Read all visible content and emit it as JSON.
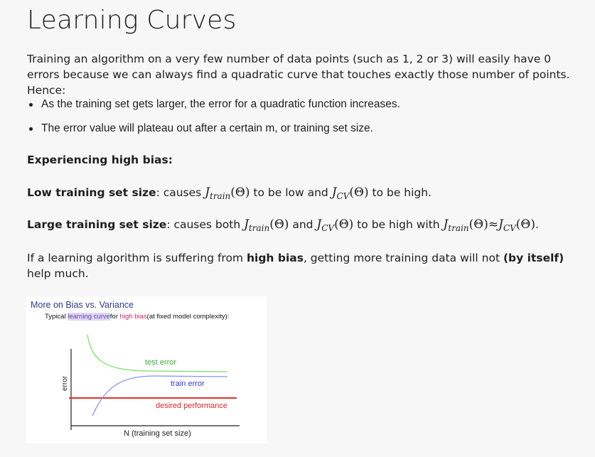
{
  "title": "Learning Curves",
  "intro": "Training an algorithm on a very few number of data points (such as 1, 2 or 3) will easily have 0 errors because we can always find a quadratic curve that touches exactly those number of points. Hence:",
  "bullets": [
    "As the training set gets larger, the error for a quadratic function increases.",
    "The error value will plateau out after a certain m, or training set size."
  ],
  "high_bias_heading": "Experiencing high bias:",
  "low_size": {
    "label": "Low training set size",
    "t1": ": causes ",
    "t2": " to be low and ",
    "t3": " to be high."
  },
  "large_size": {
    "label": "Large training set size",
    "t1": ": causes both ",
    "t2": " and ",
    "t3": " to be high with ",
    "t4": "."
  },
  "math": {
    "J": "J",
    "train_sub": "train",
    "cv_sub": "CV",
    "theta": "(Θ)",
    "approx": "≈"
  },
  "conclusion": {
    "t1": "If a learning algorithm is suffering from ",
    "b1": "high bias",
    "t2": ", getting more training data will not ",
    "b2": "(by itself)",
    "t3": " help much."
  },
  "figure": {
    "title": "More on Bias vs. Variance",
    "subtitle_pre": "Typical ",
    "subtitle_hl": "learning curve",
    "subtitle_mid": "for ",
    "subtitle_pk": "high bias",
    "subtitle_post": "(at fixed model complexity):",
    "ylabel": "error",
    "xlabel": "N (training set size)",
    "test_label": "test error",
    "train_label": "train error",
    "desired_label": "desired performance",
    "colors": {
      "test": "#7fdc6e",
      "train": "#8f8ff0",
      "desired": "#e03030",
      "title": "#2c3c8c"
    }
  }
}
